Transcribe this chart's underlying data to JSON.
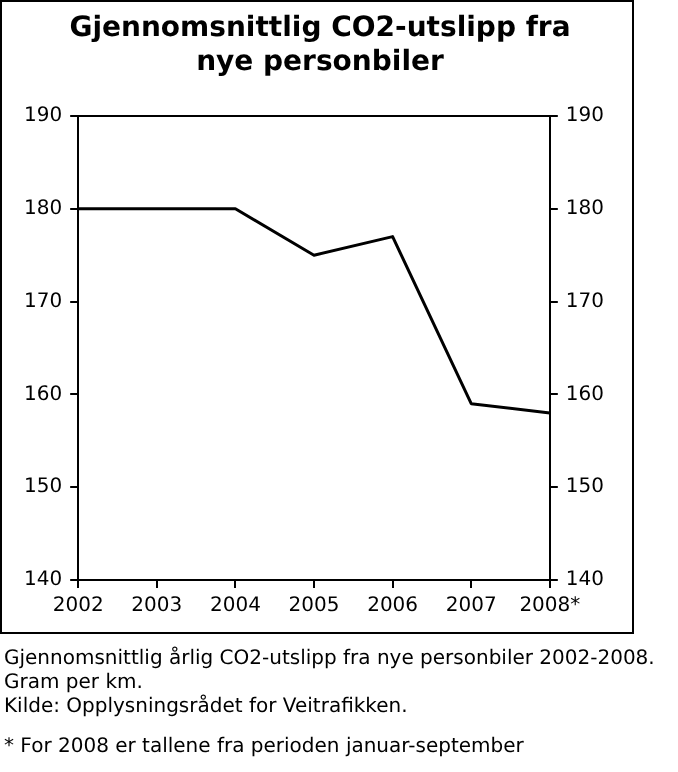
{
  "chart_data": {
    "type": "line",
    "title": "Gjennomsnittlig CO2-utslipp fra nye personbiler",
    "categories": [
      "2002",
      "2003",
      "2004",
      "2005",
      "2006",
      "2007",
      "2008*"
    ],
    "series": [
      {
        "color": "#000000",
        "values": [
          180,
          180,
          180,
          175,
          177,
          159,
          158
        ]
      }
    ],
    "ylim": [
      140,
      190
    ],
    "yticks": [
      140,
      150,
      160,
      170,
      180,
      190
    ],
    "y2lim": [
      140,
      190
    ],
    "y2ticks": [
      140,
      150,
      160,
      170,
      180,
      190
    ],
    "grid": false,
    "legend": false,
    "marker": "none",
    "line_style": "solid",
    "annotations": [
      "Gjennomsnittlig årlig CO2-utslipp fra nye personbiler 2002-2008. Gram per km.",
      "Kilde: Opplysningsrådet for Veitrafikken.",
      "* For 2008 er tallene fra perioden januar-september"
    ]
  }
}
